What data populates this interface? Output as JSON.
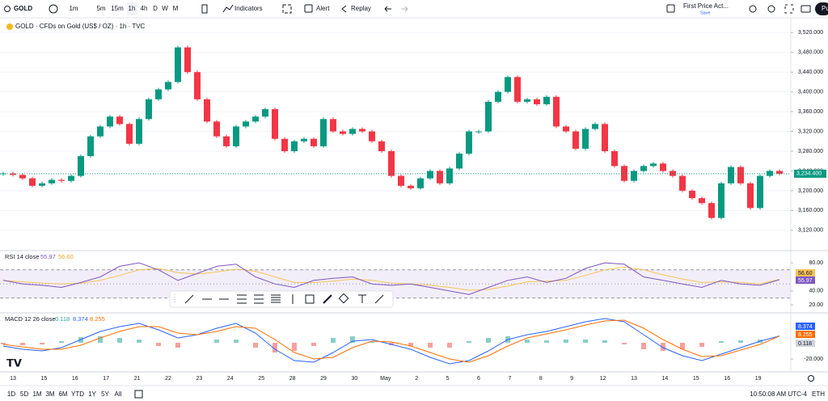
{
  "toolbar": {
    "symbol": "GOLD",
    "intervals": [
      "1m",
      "5m",
      "15m",
      "1h",
      "4h",
      "D",
      "W",
      "M"
    ],
    "indicators": "Indicators",
    "alert": "Alert",
    "replay": "Replay",
    "layout_name": "First Price Act...",
    "save": "Save",
    "user": "Pu"
  },
  "chart_data": [
    {
      "type": "candlestick",
      "title": "GOLD · CFDs on Gold (US$ / OZ) · 1h · TVC",
      "values": [
        3235,
        3232,
        3225,
        3210,
        3215,
        3222,
        3220,
        3230,
        3270,
        3310,
        3330,
        3350,
        3335,
        3295,
        3345,
        3385,
        3405,
        3420,
        3490,
        3440,
        3385,
        3340,
        3310,
        3290,
        3330,
        3340,
        3350,
        3365,
        3305,
        3280,
        3300,
        3305,
        3290,
        3345,
        3320,
        3315,
        3325,
        3320,
        3300,
        3280,
        3230,
        3210,
        3205,
        3225,
        3240,
        3215,
        3245,
        3275,
        3320,
        3320,
        3380,
        3400,
        3430,
        3380,
        3385,
        3375,
        3390,
        3330,
        3320,
        3285,
        3325,
        3335,
        3280,
        3250,
        3220,
        3240,
        3250,
        3255,
        3240,
        3230,
        3200,
        3185,
        3175,
        3145,
        3215,
        3248,
        3215,
        3165,
        3230,
        3240,
        3234.4
      ],
      "last_label": "3,234.400",
      "up_color": "#089981",
      "down_color": "#f23645",
      "ylim": [
        3087,
        3545
      ],
      "yticks": [
        {
          "value": 3520,
          "label": "3,520.000"
        },
        {
          "value": 3480,
          "label": "3,480.000"
        },
        {
          "value": 3440,
          "label": "3,440.000"
        },
        {
          "value": 3400,
          "label": "3,400.000"
        },
        {
          "value": 3360,
          "label": "3,360.000"
        },
        {
          "value": 3320,
          "label": "3,320.000"
        },
        {
          "value": 3280,
          "label": "3,280.000"
        },
        {
          "value": 3240,
          "label": "3,240.000"
        },
        {
          "value": 3200,
          "label": "3,200.000"
        },
        {
          "value": 3160,
          "label": "3,160.000"
        },
        {
          "value": 3120,
          "label": "3,120.000"
        }
      ],
      "xtick_labels": [
        "13",
        "15",
        "16",
        "17",
        "21",
        "22",
        "23",
        "24",
        "25",
        "28",
        "29",
        "30",
        "May",
        "2",
        "5",
        "6",
        "7",
        "8",
        "9",
        "12",
        "13",
        "14",
        "15",
        "16",
        "19"
      ],
      "grid": true
    },
    {
      "type": "line",
      "title": "RSI 14 close",
      "series": [
        {
          "color": "#7e57c2",
          "last_label": "55.97",
          "values": [
            55,
            50,
            48,
            45,
            52,
            60,
            75,
            80,
            70,
            55,
            65,
            75,
            78,
            60,
            50,
            45,
            55,
            58,
            60,
            50,
            48,
            50,
            45,
            40,
            35,
            45,
            55,
            60,
            52,
            58,
            72,
            80,
            78,
            60,
            55,
            50,
            45,
            55,
            50,
            48,
            55.97
          ]
        },
        {
          "color": "#f7c35a",
          "last_label": "56.60",
          "values": [
            55,
            53,
            51,
            50,
            51,
            55,
            62,
            70,
            72,
            66,
            64,
            67,
            71,
            68,
            60,
            52,
            52,
            54,
            57,
            55,
            51,
            50,
            48,
            45,
            41,
            42,
            47,
            53,
            54,
            55,
            62,
            70,
            74,
            70,
            63,
            57,
            52,
            53,
            52,
            50,
            56.6
          ]
        }
      ],
      "bands": [
        70,
        50,
        30
      ],
      "ylim": [
        10,
        95
      ],
      "yticks": [
        {
          "value": 80,
          "label": "80.00"
        },
        {
          "value": 40,
          "label": "40.00"
        },
        {
          "value": 20,
          "label": "20.00"
        }
      ]
    },
    {
      "type": "macd",
      "title": "MACD 12 26 close",
      "histogram": {
        "color_up": "#26a69a",
        "color_down": "#ef5350",
        "last_label": "0.118",
        "values": [
          -2,
          -3,
          -2,
          2,
          7,
          8,
          6,
          4,
          -4,
          -6,
          0,
          4,
          4,
          -6,
          -12,
          -10,
          -4,
          6,
          8,
          2,
          -3,
          -4,
          -6,
          -6,
          2,
          6,
          8,
          4,
          3,
          4,
          4,
          3,
          -2,
          -8,
          -10,
          -8,
          -5,
          2,
          3,
          4,
          0.118
        ]
      },
      "series": [
        {
          "color": "#2962ff",
          "last_label": "8.374",
          "values": [
            -4,
            -8,
            -10,
            -6,
            4,
            14,
            20,
            24,
            16,
            6,
            10,
            18,
            24,
            12,
            -8,
            -22,
            -24,
            -12,
            2,
            4,
            -2,
            -8,
            -18,
            -26,
            -22,
            -10,
            4,
            10,
            14,
            20,
            26,
            30,
            26,
            10,
            -6,
            -16,
            -22,
            -14,
            -6,
            2,
            8.374
          ]
        },
        {
          "color": "#ff6d00",
          "last_label": "8.255",
          "values": [
            -2,
            -5,
            -8,
            -8,
            -3,
            6,
            14,
            20,
            20,
            12,
            10,
            14,
            20,
            18,
            4,
            -12,
            -20,
            -18,
            -6,
            2,
            1,
            -4,
            -12,
            -20,
            -24,
            -16,
            -4,
            6,
            11,
            16,
            22,
            27,
            28,
            18,
            4,
            -8,
            -17,
            -16,
            -9,
            -2,
            8.255
          ]
        }
      ],
      "ylim": [
        -36,
        36
      ],
      "yticks": [
        {
          "value": -20,
          "label": "-20.000"
        }
      ]
    }
  ],
  "bottom_bar": {
    "ranges": [
      "1D",
      "5D",
      "1M",
      "3M",
      "6M",
      "YTD",
      "1Y",
      "5Y",
      "All"
    ],
    "clock": "10:50:08 AM UTC-4",
    "session": "ETH"
  }
}
